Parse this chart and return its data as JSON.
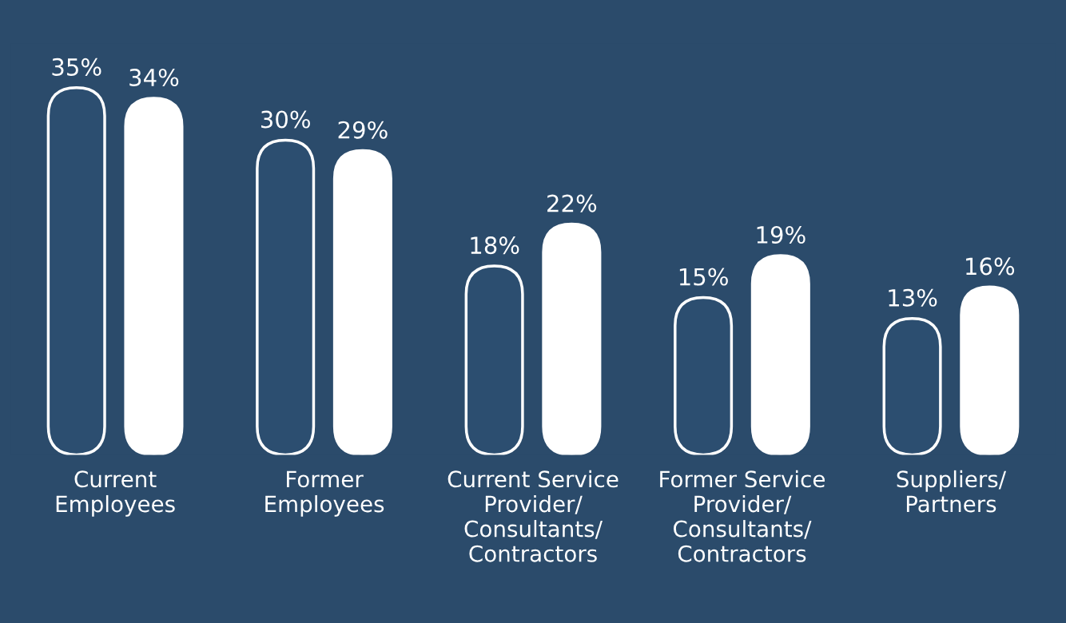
{
  "chart_data": {
    "type": "bar",
    "categories": [
      "Current\nEmployees",
      "Former\nEmployees",
      "Current Service\nProvider/\nConsultants/\nContractors",
      "Former Service\nProvider/\nConsultants/\nContractors",
      "Suppliers/\nPartners"
    ],
    "series": [
      {
        "color": "#2c4e70",
        "values": [
          35,
          30,
          18,
          15,
          13
        ],
        "value_labels": [
          "35%",
          "30%",
          "18%",
          "15%",
          "13%"
        ]
      },
      {
        "color": "#ffffff",
        "values": [
          34,
          29,
          22,
          19,
          16
        ],
        "value_labels": [
          "34%",
          "29%",
          "22%",
          "19%",
          "16%"
        ]
      }
    ],
    "grid": false,
    "tick_labels": "x"
  }
}
